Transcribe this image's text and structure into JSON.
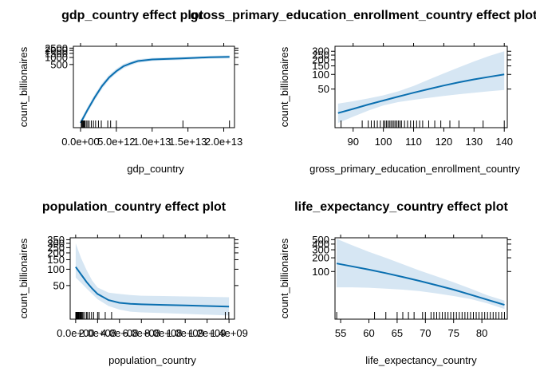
{
  "chart_data": [
    {
      "type": "line",
      "title": "gdp_country effect plot",
      "xlabel": "gdp_country",
      "ylabel": "count_billionaires",
      "xlim": [
        -1000000000000.0,
        21500000000000.0
      ],
      "ylim": [
        1,
        3000
      ],
      "ylog": true,
      "x_ticks": [
        0,
        5000000000000.0,
        10000000000000.0,
        15000000000000.0,
        20000000000000.0
      ],
      "x_tick_labels": [
        "0.0e+00",
        "5.0e+12",
        "1.0e+13",
        "1.5e+13",
        "2.0e+13"
      ],
      "y_ticks": [
        500,
        1000,
        1500,
        2000,
        2500
      ],
      "y_tick_labels": [
        "500",
        "1000",
        "1500",
        "2000",
        "2500"
      ],
      "series": [
        {
          "x": [
            0,
            1000000000000.0,
            2000000000000.0,
            3000000000000.0,
            4000000000000.0,
            5000000000000.0,
            6000000000000.0,
            7000000000000.0,
            8000000000000.0,
            10000000000000.0,
            12000000000000.0,
            14000000000000.0,
            16000000000000.0,
            18000000000000.0,
            20800000000000.0
          ],
          "y": [
            1.6,
            6,
            20,
            60,
            140,
            260,
            420,
            560,
            700,
            820,
            860,
            900,
            960,
            1020,
            1060
          ],
          "lower": [
            1.2,
            4.5,
            15,
            45,
            110,
            210,
            340,
            460,
            590,
            700,
            740,
            780,
            830,
            880,
            900
          ],
          "upper": [
            2.1,
            8,
            27,
            80,
            180,
            330,
            520,
            680,
            840,
            960,
            1000,
            1050,
            1110,
            1180,
            1250
          ]
        }
      ],
      "rug": [
        100000000000.0,
        200000000000.0,
        300000000000.0,
        400000000000.0,
        500000000000.0,
        600000000000.0,
        800000000000.0,
        1000000000000.0,
        1200000000000.0,
        1500000000000.0,
        1800000000000.0,
        2100000000000.0,
        2500000000000.0,
        2900000000000.0,
        3800000000000.0,
        4200000000000.0,
        5000000000000.0,
        14300000000000.0,
        20800000000000.0
      ]
    },
    {
      "type": "line",
      "title": "gross_primary_education_enrollment_country effect plot",
      "xlabel": "gross_primary_education_enrollment_country",
      "ylabel": "count_billionaires",
      "xlim": [
        84,
        141
      ],
      "ylim": [
        8,
        380
      ],
      "ylog": true,
      "x_ticks": [
        90,
        100,
        110,
        120,
        130,
        140
      ],
      "x_tick_labels": [
        "90",
        "100",
        "110",
        "120",
        "130",
        "140"
      ],
      "y_ticks": [
        50,
        100,
        150,
        200,
        250,
        300
      ],
      "y_tick_labels": [
        "50",
        "100",
        "150",
        "200",
        "250",
        "300"
      ],
      "series": [
        {
          "x": [
            85,
            90,
            95,
            100,
            105,
            110,
            115,
            120,
            125,
            130,
            135,
            140
          ],
          "y": [
            16,
            19.5,
            24,
            29,
            35,
            42,
            50,
            59,
            69,
            79,
            89,
            100
          ],
          "lower": [
            10,
            13.5,
            18,
            23,
            27,
            30,
            33,
            36,
            39,
            42,
            45,
            48
          ],
          "upper": [
            25,
            28,
            32,
            37,
            45,
            58,
            78,
            105,
            140,
            185,
            240,
            300
          ]
        }
      ],
      "rug": [
        86,
        93,
        95,
        96,
        97,
        98,
        99,
        100,
        100.5,
        101,
        101.5,
        102,
        102.5,
        103,
        103.5,
        104,
        104.5,
        105,
        105.5,
        106,
        107,
        108,
        109,
        110,
        111,
        112,
        113,
        115,
        117,
        119,
        122,
        125,
        133,
        140
      ]
    },
    {
      "type": "line",
      "title": "population_country effect plot",
      "xlabel": "population_country",
      "ylabel": "count_billionaires",
      "xlim": [
        -50000000.0,
        1450000000.0
      ],
      "ylim": [
        12,
        380
      ],
      "ylog": true,
      "x_ticks": [
        0,
        200000000.0,
        400000000.0,
        600000000.0,
        800000000.0,
        1000000000.0,
        1200000000.0,
        1400000000.0
      ],
      "x_tick_labels": [
        "0.0e+00",
        "2.0e+08",
        "4.0e+08",
        "6.0e+08",
        "8.0e+08",
        "1.0e+09",
        "1.2e+09",
        "1.4e+09"
      ],
      "y_ticks": [
        50,
        100,
        150,
        200,
        250,
        300,
        350
      ],
      "y_tick_labels": [
        "50",
        "100",
        "150",
        "200",
        "250",
        "300",
        "350"
      ],
      "series": [
        {
          "x": [
            0,
            50000000.0,
            100000000.0,
            150000000.0,
            200000000.0,
            300000000.0,
            400000000.0,
            500000000.0,
            600000000.0,
            800000000.0,
            1000000000.0,
            1200000000.0,
            1400000000.0
          ],
          "y": [
            110,
            80,
            58,
            44,
            35,
            27,
            24,
            23,
            22.5,
            22,
            21.5,
            21,
            20.5
          ],
          "lower": [
            70,
            56,
            44,
            35,
            28,
            21,
            18,
            16.5,
            16,
            15.5,
            15,
            14.5,
            14
          ],
          "upper": [
            300,
            160,
            96,
            62,
            46,
            37,
            35,
            33.5,
            32.5,
            32,
            31.5,
            31,
            30.5
          ]
        }
      ],
      "rug": [
        1000000.0,
        3000000.0,
        5000000.0,
        8000000.0,
        11000000.0,
        15000000.0,
        20000000.0,
        25000000.0,
        30000000.0,
        38000000.0,
        45000000.0,
        52000000.0,
        60000000.0,
        68000000.0,
        83000000.0,
        100000000.0,
        110000000.0,
        127000000.0,
        145000000.0,
        164000000.0,
        200000000.0,
        212000000.0,
        270000000.0,
        328000000.0,
        1366000000.0,
        1398000000.0
      ]
    },
    {
      "type": "line",
      "title": "life_expectancy_country effect plot",
      "xlabel": "life_expectancy_country",
      "ylabel": "count_billionaires",
      "xlim": [
        54,
        84.5
      ],
      "ylim": [
        9,
        550
      ],
      "ylog": true,
      "x_ticks": [
        55,
        60,
        65,
        70,
        75,
        80
      ],
      "x_tick_labels": [
        "55",
        "60",
        "65",
        "70",
        "75",
        "80"
      ],
      "y_ticks": [
        100,
        200,
        300,
        400,
        500
      ],
      "y_tick_labels": [
        "100",
        "200",
        "300",
        "400",
        "500"
      ],
      "series": [
        {
          "x": [
            54.3,
            57,
            60,
            63,
            66,
            69,
            72,
            75,
            78,
            81,
            84
          ],
          "y": [
            150,
            130,
            110,
            92,
            76,
            62,
            50,
            40,
            31,
            24,
            18.5
          ],
          "lower": [
            45,
            45,
            44,
            42,
            40,
            37,
            33,
            29,
            25,
            20,
            15
          ],
          "upper": [
            520,
            380,
            270,
            200,
            145,
            105,
            78,
            58,
            42,
            30,
            23
          ]
        }
      ],
      "rug": [
        54.3,
        61,
        63,
        65,
        66,
        67,
        68,
        69.5,
        70,
        71,
        71.5,
        72,
        72.5,
        73,
        73.5,
        74,
        74.5,
        75,
        75.5,
        76,
        76.5,
        77,
        77.5,
        78,
        78.5,
        79,
        79.5,
        80,
        80.5,
        81,
        81.5,
        82,
        82.5,
        83,
        83.5,
        84
      ]
    }
  ]
}
